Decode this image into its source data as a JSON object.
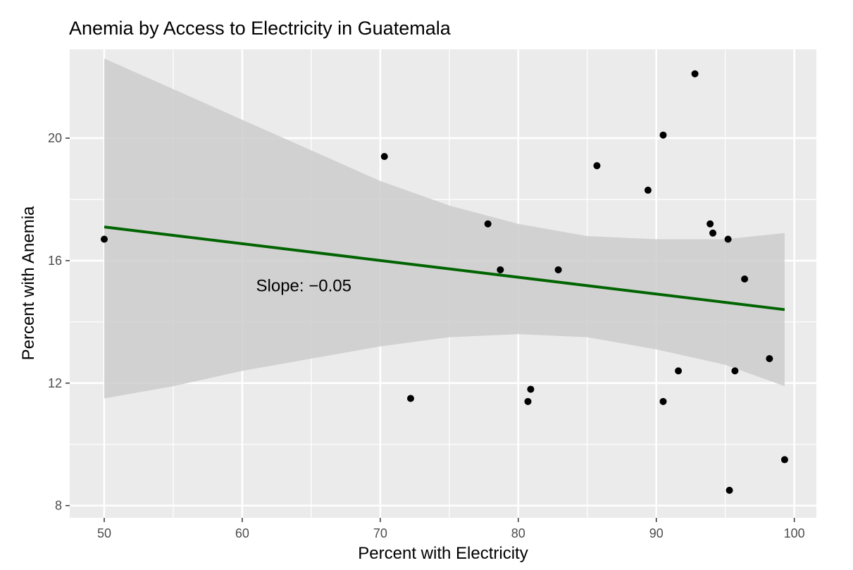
{
  "chart_data": {
    "type": "scatter",
    "title": "Anemia by Access to Electricity in Guatemala",
    "xlabel": "Percent with Electricity",
    "ylabel": "Percent with Anemia",
    "xlim": [
      47.5,
      101.6
    ],
    "ylim": [
      7.6,
      22.9
    ],
    "xticks": [
      50,
      60,
      70,
      80,
      90,
      100
    ],
    "xtick_labels": [
      "50",
      "60",
      "70",
      "80",
      "90",
      "100"
    ],
    "yticks": [
      8,
      12,
      16,
      20
    ],
    "ytick_labels": [
      "8",
      "12",
      "16",
      "20"
    ],
    "grid": true,
    "points": [
      {
        "x": 50.0,
        "y": 16.7
      },
      {
        "x": 70.3,
        "y": 19.4
      },
      {
        "x": 72.2,
        "y": 11.5
      },
      {
        "x": 77.8,
        "y": 17.2
      },
      {
        "x": 78.7,
        "y": 15.7
      },
      {
        "x": 80.7,
        "y": 11.4
      },
      {
        "x": 80.9,
        "y": 11.8
      },
      {
        "x": 82.9,
        "y": 15.7
      },
      {
        "x": 85.7,
        "y": 19.1
      },
      {
        "x": 89.4,
        "y": 18.3
      },
      {
        "x": 90.5,
        "y": 20.1
      },
      {
        "x": 90.5,
        "y": 11.4
      },
      {
        "x": 91.6,
        "y": 12.4
      },
      {
        "x": 92.8,
        "y": 22.1
      },
      {
        "x": 93.9,
        "y": 17.2
      },
      {
        "x": 94.1,
        "y": 16.9
      },
      {
        "x": 95.2,
        "y": 16.7
      },
      {
        "x": 95.3,
        "y": 8.5
      },
      {
        "x": 95.7,
        "y": 12.4
      },
      {
        "x": 96.4,
        "y": 15.4
      },
      {
        "x": 98.2,
        "y": 12.8
      },
      {
        "x": 99.3,
        "y": 9.5
      }
    ],
    "trend_line": {
      "x": [
        50.0,
        99.3
      ],
      "y": [
        17.1,
        14.4
      ],
      "color": "#006400"
    },
    "confidence_band": {
      "x": [
        50.0,
        55.0,
        60.0,
        65.0,
        70.0,
        75.0,
        80.0,
        85.0,
        90.0,
        95.0,
        99.3
      ],
      "upper": [
        22.6,
        21.6,
        20.6,
        19.6,
        18.6,
        17.8,
        17.2,
        16.8,
        16.7,
        16.7,
        16.9
      ],
      "lower": [
        11.5,
        11.9,
        12.4,
        12.8,
        13.2,
        13.5,
        13.6,
        13.5,
        13.1,
        12.6,
        11.9
      ],
      "color": "#cccccc"
    },
    "annotation": {
      "text": "Slope: −0.05",
      "x": 61,
      "y": 15.0
    },
    "colors": {
      "panel_background": "#ebebeb",
      "grid_major": "#ffffff",
      "point": "#000000"
    }
  }
}
